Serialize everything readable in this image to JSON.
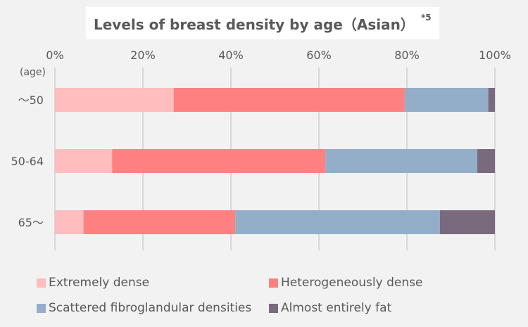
{
  "title": {
    "text": "Levels of breast density by age（Asian）",
    "note": "*5"
  },
  "chart_data": {
    "type": "bar",
    "orientation": "horizontal",
    "stacked": true,
    "xlim": [
      0,
      100
    ],
    "x_ticks": [
      "0%",
      "20%",
      "40%",
      "60%",
      "80%",
      "100%"
    ],
    "ylabel": "(age)",
    "categories": [
      "～50",
      "50-64",
      "65～"
    ],
    "series": [
      {
        "name": "Extremely dense",
        "color": "#ffbdbd",
        "values": [
          27,
          13,
          6.5
        ]
      },
      {
        "name": "Heterogeneously dense",
        "color": "#ff8080",
        "values": [
          52.5,
          48.5,
          34.5
        ]
      },
      {
        "name": "Scattered fibroglandular densities",
        "color": "#93aec8",
        "values": [
          19,
          34.5,
          46.5
        ]
      },
      {
        "name": "Almost entirely fat",
        "color": "#7a6a7d",
        "values": [
          1.5,
          4,
          12.5
        ]
      }
    ],
    "grid": true,
    "legend_position": "bottom"
  }
}
